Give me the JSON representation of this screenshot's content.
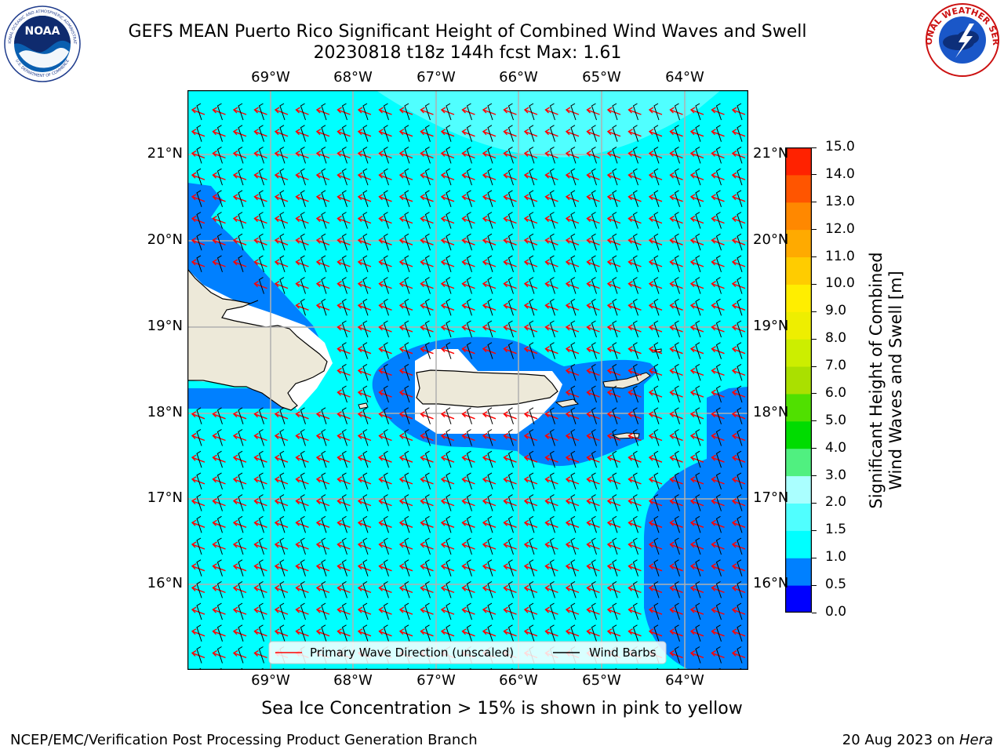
{
  "title": {
    "line1": "GEFS MEAN Puerto Rico Significant Height of Combined Wind Waves and Swell",
    "line2": "20230818 t18z 144h fcst   Max: 1.61"
  },
  "logos": {
    "noaa_text": "NOAA",
    "noaa_ring_top": "NATIONAL OCEANIC AND ATMOSPHERIC ADMINISTRATION",
    "noaa_ring_bottom": "U.S. DEPARTMENT OF COMMERCE",
    "nws_ring": "NATIONAL WEATHER SERVICE"
  },
  "map": {
    "lon_labels": [
      "69°W",
      "68°W",
      "67°W",
      "66°W",
      "65°W",
      "64°W"
    ],
    "lat_labels": [
      "21°N",
      "20°N",
      "19°N",
      "18°N",
      "17°N",
      "16°N"
    ],
    "colors": {
      "ocean_1_0_1_5": "#00ffff",
      "ocean_0_5_1_0": "#0080ff",
      "ocean_1_5_2_0": "#50ffff",
      "land": "#ede9d9",
      "grid": "#b0b0b0",
      "wave_arrow": "#ff0000",
      "wind_barb": "#000000"
    },
    "legend": {
      "primary_wave": "Primary Wave Direction (unscaled)",
      "wind_barbs": "Wind Barbs"
    }
  },
  "colorbar": {
    "label_line1": "Significant Height of Combined",
    "label_line2": "Wind Waves and Swell [m]",
    "ticks": [
      "0.0",
      "0.5",
      "1.0",
      "1.5",
      "2.0",
      "3.0",
      "4.0",
      "5.0",
      "6.0",
      "7.0",
      "8.0",
      "9.0",
      "10.0",
      "11.0",
      "12.0",
      "13.0",
      "14.0",
      "15.0"
    ],
    "colors": [
      "#0000ff",
      "#0080ff",
      "#00ffff",
      "#50ffff",
      "#aaffff",
      "#50f080",
      "#00dc00",
      "#50e000",
      "#aae000",
      "#ccee00",
      "#eeee00",
      "#ffee00",
      "#ffcc00",
      "#ffaa00",
      "#ff8800",
      "#ff5500",
      "#ff2200",
      "#ff0000"
    ]
  },
  "subcaption": "Sea Ice Concentration > 15% is shown in pink to yellow",
  "footer": {
    "left": "NCEP/EMC/Verification Post Processing Product Generation Branch",
    "right_prefix": "20 Aug 2023 on ",
    "right_host": "Hera"
  }
}
